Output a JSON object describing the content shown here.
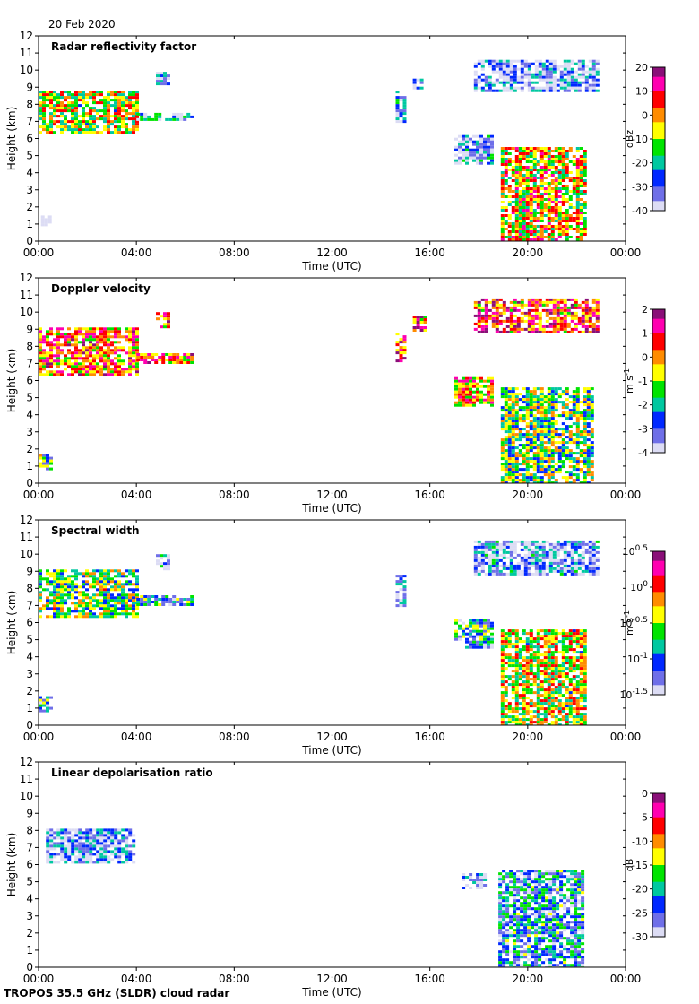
{
  "date": "20 Feb 2020",
  "footer": "TROPOS 35.5 GHz (SLDR) cloud radar",
  "chart_data": [
    {
      "type": "heatmap",
      "title": "Radar reflectivity factor",
      "xlabel": "Time (UTC)",
      "ylabel": "Height (km)",
      "xlim": [
        0,
        24
      ],
      "ylim": [
        0,
        12
      ],
      "xticks": [
        "00:00",
        "04:00",
        "08:00",
        "12:00",
        "16:00",
        "20:00",
        "00:00"
      ],
      "yticks": [
        0,
        1,
        2,
        3,
        4,
        5,
        6,
        7,
        8,
        9,
        10,
        11,
        12
      ],
      "colorbar": {
        "unit": "dBz",
        "min": -40,
        "max": 20,
        "ticks": [
          "20",
          "10",
          "0",
          "-10",
          "-20",
          "-30",
          "-40"
        ],
        "log": false
      },
      "features": [
        {
          "t0": 0.0,
          "t1": 4.0,
          "h0": 6.3,
          "h1": 8.8,
          "level": 0.55
        },
        {
          "t0": 4.0,
          "t1": 6.2,
          "h0": 7.1,
          "h1": 7.5,
          "level": 0.2
        },
        {
          "t0": 4.8,
          "t1": 5.3,
          "h0": 9.2,
          "h1": 9.9,
          "level": 0.15
        },
        {
          "t0": 0.1,
          "t1": 0.5,
          "h0": 1.0,
          "h1": 1.5,
          "level": -0.2
        },
        {
          "t0": 14.6,
          "t1": 15.0,
          "h0": 7.0,
          "h1": 8.8,
          "level": 0.15
        },
        {
          "t0": 15.3,
          "t1": 15.6,
          "h0": 9.0,
          "h1": 9.5,
          "level": 0.1
        },
        {
          "t0": 17.0,
          "t1": 18.5,
          "h0": 4.5,
          "h1": 6.2,
          "level": 0.15
        },
        {
          "t0": 18.9,
          "t1": 22.3,
          "h0": 0.0,
          "h1": 5.5,
          "level": 0.6
        },
        {
          "t0": 17.8,
          "t1": 22.8,
          "h0": 8.8,
          "h1": 10.6,
          "level": 0.1
        }
      ]
    },
    {
      "type": "heatmap",
      "title": "Doppler velocity",
      "xlabel": "Time (UTC)",
      "ylabel": "Height (km)",
      "xlim": [
        0,
        24
      ],
      "ylim": [
        0,
        12
      ],
      "xticks": [
        "00:00",
        "04:00",
        "08:00",
        "12:00",
        "16:00",
        "20:00",
        "00:00"
      ],
      "yticks": [
        0,
        1,
        2,
        3,
        4,
        5,
        6,
        7,
        8,
        9,
        10,
        11,
        12
      ],
      "colorbar": {
        "unit": "m s-1",
        "min": -4,
        "max": 2,
        "ticks": [
          "2",
          "1",
          "0",
          "-1",
          "-2",
          "-3",
          "-4"
        ],
        "log": false
      },
      "features": [
        {
          "t0": 0.0,
          "t1": 4.0,
          "h0": 6.3,
          "h1": 9.1,
          "level": 0.7
        },
        {
          "t0": 4.0,
          "t1": 6.2,
          "h0": 7.1,
          "h1": 7.6,
          "level": 0.7
        },
        {
          "t0": 4.8,
          "t1": 5.3,
          "h0": 9.2,
          "h1": 10.0,
          "level": 0.75
        },
        {
          "t0": 0.0,
          "t1": 0.5,
          "h0": 0.9,
          "h1": 1.7,
          "level": 0.35
        },
        {
          "t0": 14.6,
          "t1": 15.0,
          "h0": 7.0,
          "h1": 8.8,
          "level": 0.8
        },
        {
          "t0": 15.3,
          "t1": 15.8,
          "h0": 9.0,
          "h1": 9.8,
          "level": 0.75
        },
        {
          "t0": 17.0,
          "t1": 18.5,
          "h0": 4.5,
          "h1": 6.2,
          "level": 0.65
        },
        {
          "t0": 18.9,
          "t1": 22.6,
          "h0": 0.0,
          "h1": 5.6,
          "level": 0.45
        },
        {
          "t0": 17.8,
          "t1": 22.8,
          "h0": 8.8,
          "h1": 10.8,
          "level": 0.75
        }
      ]
    },
    {
      "type": "heatmap",
      "title": "Spectral width",
      "xlabel": "Time (UTC)",
      "ylabel": "Height (km)",
      "xlim": [
        0,
        24
      ],
      "ylim": [
        0,
        12
      ],
      "xticks": [
        "00:00",
        "04:00",
        "08:00",
        "12:00",
        "16:00",
        "20:00",
        "00:00"
      ],
      "yticks": [
        0,
        1,
        2,
        3,
        4,
        5,
        6,
        7,
        8,
        9,
        10,
        11,
        12
      ],
      "colorbar": {
        "unit": "m s-1",
        "min": -1.5,
        "max": 0.5,
        "ticks": [
          "10^0.5",
          "10^0",
          "10^-0.5",
          "10^-1",
          "10^-1.5"
        ],
        "log": true
      },
      "features": [
        {
          "t0": 0.0,
          "t1": 4.0,
          "h0": 6.3,
          "h1": 9.1,
          "level": 0.45
        },
        {
          "t0": 4.0,
          "t1": 6.2,
          "h0": 7.1,
          "h1": 7.6,
          "level": 0.3
        },
        {
          "t0": 4.8,
          "t1": 5.3,
          "h0": 9.2,
          "h1": 10.0,
          "level": 0.15
        },
        {
          "t0": 0.0,
          "t1": 0.5,
          "h0": 0.9,
          "h1": 1.7,
          "level": 0.3
        },
        {
          "t0": 14.6,
          "t1": 15.0,
          "h0": 7.0,
          "h1": 8.8,
          "level": 0.15
        },
        {
          "t0": 17.0,
          "t1": 18.5,
          "h0": 4.5,
          "h1": 6.2,
          "level": 0.3
        },
        {
          "t0": 18.9,
          "t1": 22.3,
          "h0": 0.0,
          "h1": 5.6,
          "level": 0.55
        },
        {
          "t0": 17.8,
          "t1": 22.8,
          "h0": 8.8,
          "h1": 10.8,
          "level": 0.12
        }
      ]
    },
    {
      "type": "heatmap",
      "title": "Linear depolarisation ratio",
      "xlabel": "Time (UTC)",
      "ylabel": "Height (km)",
      "xlim": [
        0,
        24
      ],
      "ylim": [
        0,
        12
      ],
      "xticks": [
        "00:00",
        "04:00",
        "08:00",
        "12:00",
        "16:00",
        "20:00",
        "00:00"
      ],
      "yticks": [
        0,
        1,
        2,
        3,
        4,
        5,
        6,
        7,
        8,
        9,
        10,
        11,
        12
      ],
      "colorbar": {
        "unit": "dB",
        "min": -30,
        "max": 0,
        "ticks": [
          "0",
          "-5",
          "-10",
          "-15",
          "-20",
          "-25",
          "-30"
        ],
        "log": false
      },
      "features": [
        {
          "t0": 0.3,
          "t1": 3.9,
          "h0": 6.2,
          "h1": 8.1,
          "level": 0.1
        },
        {
          "t0": 17.3,
          "t1": 18.3,
          "h0": 4.6,
          "h1": 5.5,
          "level": 0.1
        },
        {
          "t0": 18.8,
          "t1": 22.3,
          "h0": 0.0,
          "h1": 5.7,
          "level": 0.25
        }
      ]
    }
  ]
}
